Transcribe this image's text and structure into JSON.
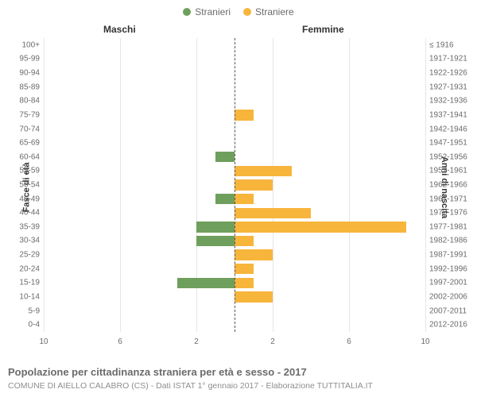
{
  "legend": {
    "male": {
      "label": "Stranieri",
      "color": "#6f9f5c"
    },
    "female": {
      "label": "Straniere",
      "color": "#f7b53c"
    }
  },
  "headers": {
    "left": "Maschi",
    "right": "Femmine"
  },
  "axis_titles": {
    "left": "Fasce di età",
    "right": "Anni di nascita"
  },
  "chart": {
    "type": "population-pyramid",
    "xmax": 10,
    "xticks": [
      10,
      6,
      2,
      2,
      6,
      10
    ],
    "background_color": "#ffffff",
    "grid_color": "#e6e6e6",
    "center_line_color": "#555555",
    "bar_width_ratio": 0.76,
    "rows": [
      {
        "age": "100+",
        "birth": "≤ 1916",
        "male": 0,
        "female": 0
      },
      {
        "age": "95-99",
        "birth": "1917-1921",
        "male": 0,
        "female": 0
      },
      {
        "age": "90-94",
        "birth": "1922-1926",
        "male": 0,
        "female": 0
      },
      {
        "age": "85-89",
        "birth": "1927-1931",
        "male": 0,
        "female": 0
      },
      {
        "age": "80-84",
        "birth": "1932-1936",
        "male": 0,
        "female": 0
      },
      {
        "age": "75-79",
        "birth": "1937-1941",
        "male": 0,
        "female": 1
      },
      {
        "age": "70-74",
        "birth": "1942-1946",
        "male": 0,
        "female": 0
      },
      {
        "age": "65-69",
        "birth": "1947-1951",
        "male": 0,
        "female": 0
      },
      {
        "age": "60-64",
        "birth": "1952-1956",
        "male": 1,
        "female": 0
      },
      {
        "age": "55-59",
        "birth": "1957-1961",
        "male": 0,
        "female": 3
      },
      {
        "age": "50-54",
        "birth": "1962-1966",
        "male": 0,
        "female": 2
      },
      {
        "age": "45-49",
        "birth": "1967-1971",
        "male": 1,
        "female": 1
      },
      {
        "age": "40-44",
        "birth": "1972-1976",
        "male": 0,
        "female": 4
      },
      {
        "age": "35-39",
        "birth": "1977-1981",
        "male": 2,
        "female": 9
      },
      {
        "age": "30-34",
        "birth": "1982-1986",
        "male": 2,
        "female": 1
      },
      {
        "age": "25-29",
        "birth": "1987-1991",
        "male": 0,
        "female": 2
      },
      {
        "age": "20-24",
        "birth": "1992-1996",
        "male": 0,
        "female": 1
      },
      {
        "age": "15-19",
        "birth": "1997-2001",
        "male": 3,
        "female": 1
      },
      {
        "age": "10-14",
        "birth": "2002-2006",
        "male": 0,
        "female": 2
      },
      {
        "age": "5-9",
        "birth": "2007-2011",
        "male": 0,
        "female": 0
      },
      {
        "age": "0-4",
        "birth": "2012-2016",
        "male": 0,
        "female": 0
      }
    ]
  },
  "caption": "Popolazione per cittadinanza straniera per età e sesso - 2017",
  "subcaption": "COMUNE DI AIELLO CALABRO (CS) - Dati ISTAT 1° gennaio 2017 - Elaborazione TUTTITALIA.IT"
}
